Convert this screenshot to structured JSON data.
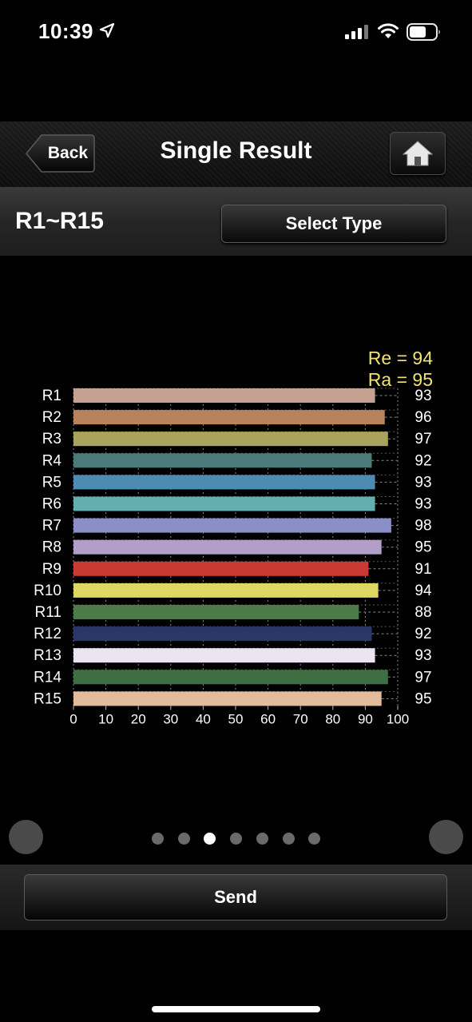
{
  "status_bar": {
    "time": "10:39"
  },
  "nav": {
    "back_label": "Back",
    "title": "Single Result"
  },
  "subheader": {
    "title": "R1~R15",
    "select_label": "Select Type"
  },
  "summary": {
    "re": "Re = 94",
    "ra": "Ra = 95",
    "color": "#f2e36f"
  },
  "chart_data": {
    "type": "bar",
    "orientation": "horizontal",
    "categories": [
      "R1",
      "R2",
      "R3",
      "R4",
      "R5",
      "R6",
      "R7",
      "R8",
      "R9",
      "R10",
      "R11",
      "R12",
      "R13",
      "R14",
      "R15"
    ],
    "values": [
      93,
      96,
      97,
      92,
      93,
      93,
      98,
      95,
      91,
      94,
      88,
      92,
      93,
      97,
      95
    ],
    "colors": [
      "#c5a192",
      "#b8825e",
      "#a9a35c",
      "#4b7a79",
      "#4e8bb3",
      "#62aeb0",
      "#8a8fc7",
      "#b39ec9",
      "#c93a34",
      "#ded863",
      "#4c7a48",
      "#2a3767",
      "#ece3f1",
      "#3f6e43",
      "#e3bc9c"
    ],
    "xlim": [
      0,
      100
    ],
    "xticks": [
      "0",
      "10",
      "20",
      "30",
      "40",
      "50",
      "60",
      "70",
      "80",
      "90",
      "100"
    ],
    "grid": true
  },
  "pager": {
    "count": 7,
    "active": 2
  },
  "footer": {
    "send_label": "Send"
  }
}
